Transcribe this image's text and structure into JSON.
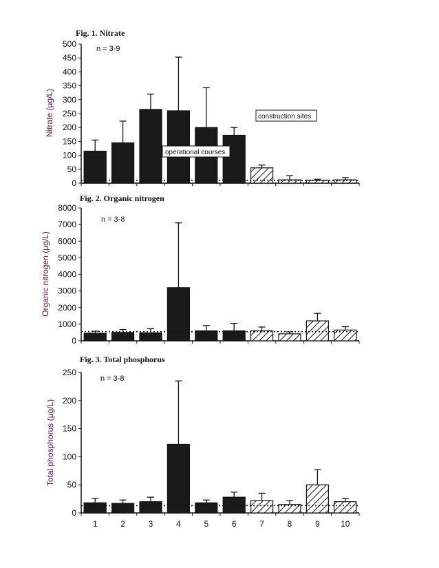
{
  "x_labels": [
    "1",
    "2",
    "3",
    "4",
    "5",
    "6",
    "7",
    "8",
    "9",
    "10"
  ],
  "legend": {
    "operational": "operational courses",
    "construction": "construction sites"
  },
  "chart_data": [
    {
      "type": "bar",
      "title": "Fig. 1. Nitrate",
      "ylabel": "Nitrate (µg/L)",
      "annotation": "n = 3-9",
      "ylim": [
        0,
        500
      ],
      "yticks": [
        0,
        50,
        100,
        150,
        200,
        250,
        300,
        350,
        400,
        450,
        500
      ],
      "categories": [
        "1",
        "2",
        "3",
        "4",
        "5",
        "6",
        "7",
        "8",
        "9",
        "10"
      ],
      "values": [
        115,
        145,
        265,
        260,
        200,
        172,
        55,
        12,
        10,
        12
      ],
      "errors": [
        40,
        78,
        55,
        193,
        143,
        28,
        10,
        15,
        4,
        8
      ],
      "reference_line": 10,
      "series_groups": {
        "operational courses": [
          "1",
          "2",
          "3",
          "4",
          "5",
          "6"
        ],
        "construction sites": [
          "7",
          "8",
          "9",
          "10"
        ]
      }
    },
    {
      "type": "bar",
      "title": "Fig. 2. Organic nitrogen",
      "ylabel": "Organic nitrogen (µg/L)",
      "annotation": "n = 3-8",
      "ylim": [
        0,
        8000
      ],
      "yticks": [
        0,
        1000,
        2000,
        3000,
        4000,
        5000,
        6000,
        7000,
        8000
      ],
      "categories": [
        "1",
        "2",
        "3",
        "4",
        "5",
        "6",
        "7",
        "8",
        "9",
        "10"
      ],
      "values": [
        450,
        500,
        480,
        3200,
        600,
        600,
        600,
        420,
        1200,
        650
      ],
      "errors": [
        130,
        180,
        250,
        3900,
        320,
        450,
        230,
        120,
        450,
        200
      ],
      "reference_line": 550,
      "series_groups": {
        "operational courses": [
          "1",
          "2",
          "3",
          "4",
          "5",
          "6"
        ],
        "construction sites": [
          "7",
          "8",
          "9",
          "10"
        ]
      }
    },
    {
      "type": "bar",
      "title": "Fig. 3. Total phosphorus",
      "ylabel": "Total phosphorus (µg/L)",
      "annotation": "n = 3-8",
      "ylim": [
        0,
        250
      ],
      "yticks": [
        0,
        50,
        100,
        150,
        200,
        250
      ],
      "categories": [
        "1",
        "2",
        "3",
        "4",
        "5",
        "6",
        "7",
        "8",
        "9",
        "10"
      ],
      "values": [
        18,
        17,
        20,
        122,
        18,
        28,
        22,
        15,
        50,
        20
      ],
      "errors": [
        8,
        6,
        8,
        113,
        5,
        9,
        13,
        7,
        27,
        6
      ],
      "reference_line": 13,
      "series_groups": {
        "operational courses": [
          "1",
          "2",
          "3",
          "4",
          "5",
          "6"
        ],
        "construction sites": [
          "7",
          "8",
          "9",
          "10"
        ]
      }
    }
  ]
}
